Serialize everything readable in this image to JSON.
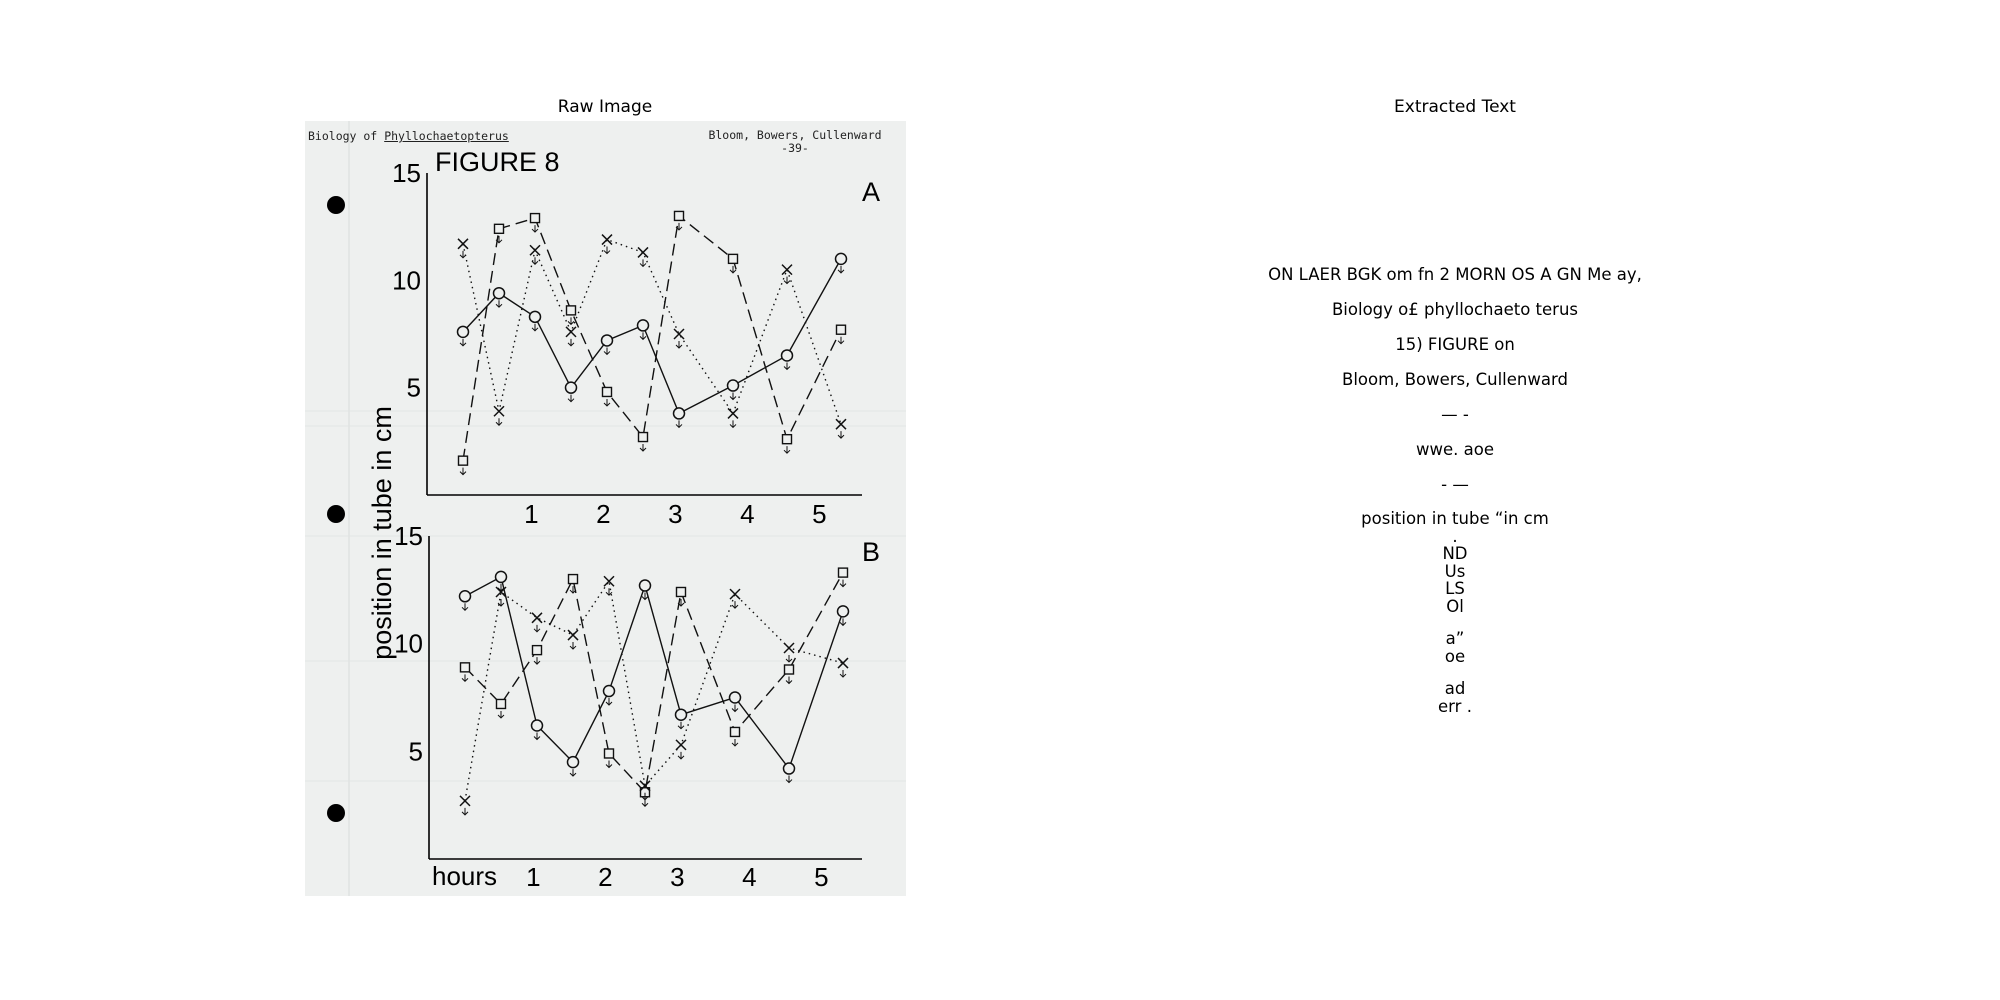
{
  "panels": {
    "left_title": "Raw Image",
    "right_title": "Extracted Text"
  },
  "document": {
    "header_left_prefix": "Biology of",
    "header_left_species": "Phyllochaetopterus",
    "header_right_authors": "Bloom, Bowers, Cullenward",
    "header_right_page": "-39-",
    "figure_title": "FIGURE 8",
    "ylabel": "position in tube in cm",
    "xlabel": "hours"
  },
  "chart_data": [
    {
      "type": "line",
      "panel_label": "A",
      "x": [
        0,
        0.5,
        1,
        1.5,
        2,
        2.5,
        3,
        3.75,
        4.5,
        5.25
      ],
      "xticks": [
        "1",
        "2",
        "3",
        "4",
        "5"
      ],
      "yticks": [
        "15",
        "10",
        "5"
      ],
      "ylim": [
        0,
        15
      ],
      "xlim": [
        0,
        5.5
      ],
      "series": [
        {
          "style": "solid-circle",
          "values": [
            7.6,
            9.4,
            8.3,
            5.0,
            7.2,
            7.9,
            3.8,
            5.1,
            6.5,
            11.0
          ]
        },
        {
          "style": "dashed-square",
          "values": [
            1.6,
            12.4,
            12.9,
            8.6,
            4.8,
            2.7,
            13.0,
            11.0,
            2.6,
            7.7
          ]
        },
        {
          "style": "dotted-x",
          "values": [
            11.7,
            3.9,
            11.4,
            7.6,
            11.9,
            11.3,
            7.5,
            3.8,
            10.5,
            3.3
          ]
        }
      ]
    },
    {
      "type": "line",
      "panel_label": "B",
      "x": [
        0,
        0.5,
        1,
        1.5,
        2,
        2.5,
        3,
        3.75,
        4.5,
        5.25
      ],
      "xticks": [
        "1",
        "2",
        "3",
        "4",
        "5"
      ],
      "yticks": [
        "15",
        "10",
        "5"
      ],
      "ylim": [
        0,
        15
      ],
      "xlim": [
        0,
        5.5
      ],
      "series": [
        {
          "style": "solid-circle",
          "values": [
            12.2,
            13.1,
            6.2,
            4.5,
            7.8,
            12.7,
            6.7,
            7.5,
            4.2,
            11.5
          ]
        },
        {
          "style": "dashed-square",
          "values": [
            8.9,
            7.2,
            9.7,
            13.0,
            4.9,
            3.1,
            12.4,
            5.9,
            8.8,
            13.3
          ]
        },
        {
          "style": "dotted-x",
          "values": [
            2.7,
            12.4,
            11.2,
            10.4,
            12.9,
            3.4,
            5.3,
            12.3,
            9.8,
            9.1
          ]
        }
      ]
    }
  ],
  "extracted_text": {
    "paragraphs": [
      "ON LAER BGK om fn 2 MORN OS A GN Me ay,",
      "Biology o£ phyllochaeto terus",
      "15) FIGURE on",
      "Bloom, Bowers, Cullenward",
      "— -",
      "wwe. aoe",
      "- —"
    ],
    "block1": [
      "position in tube “in cm",
      ".",
      "ND",
      "Us",
      "LS",
      "Ol"
    ],
    "block2": [
      "a”",
      "oe"
    ],
    "block3": [
      "ad",
      "err ."
    ]
  }
}
